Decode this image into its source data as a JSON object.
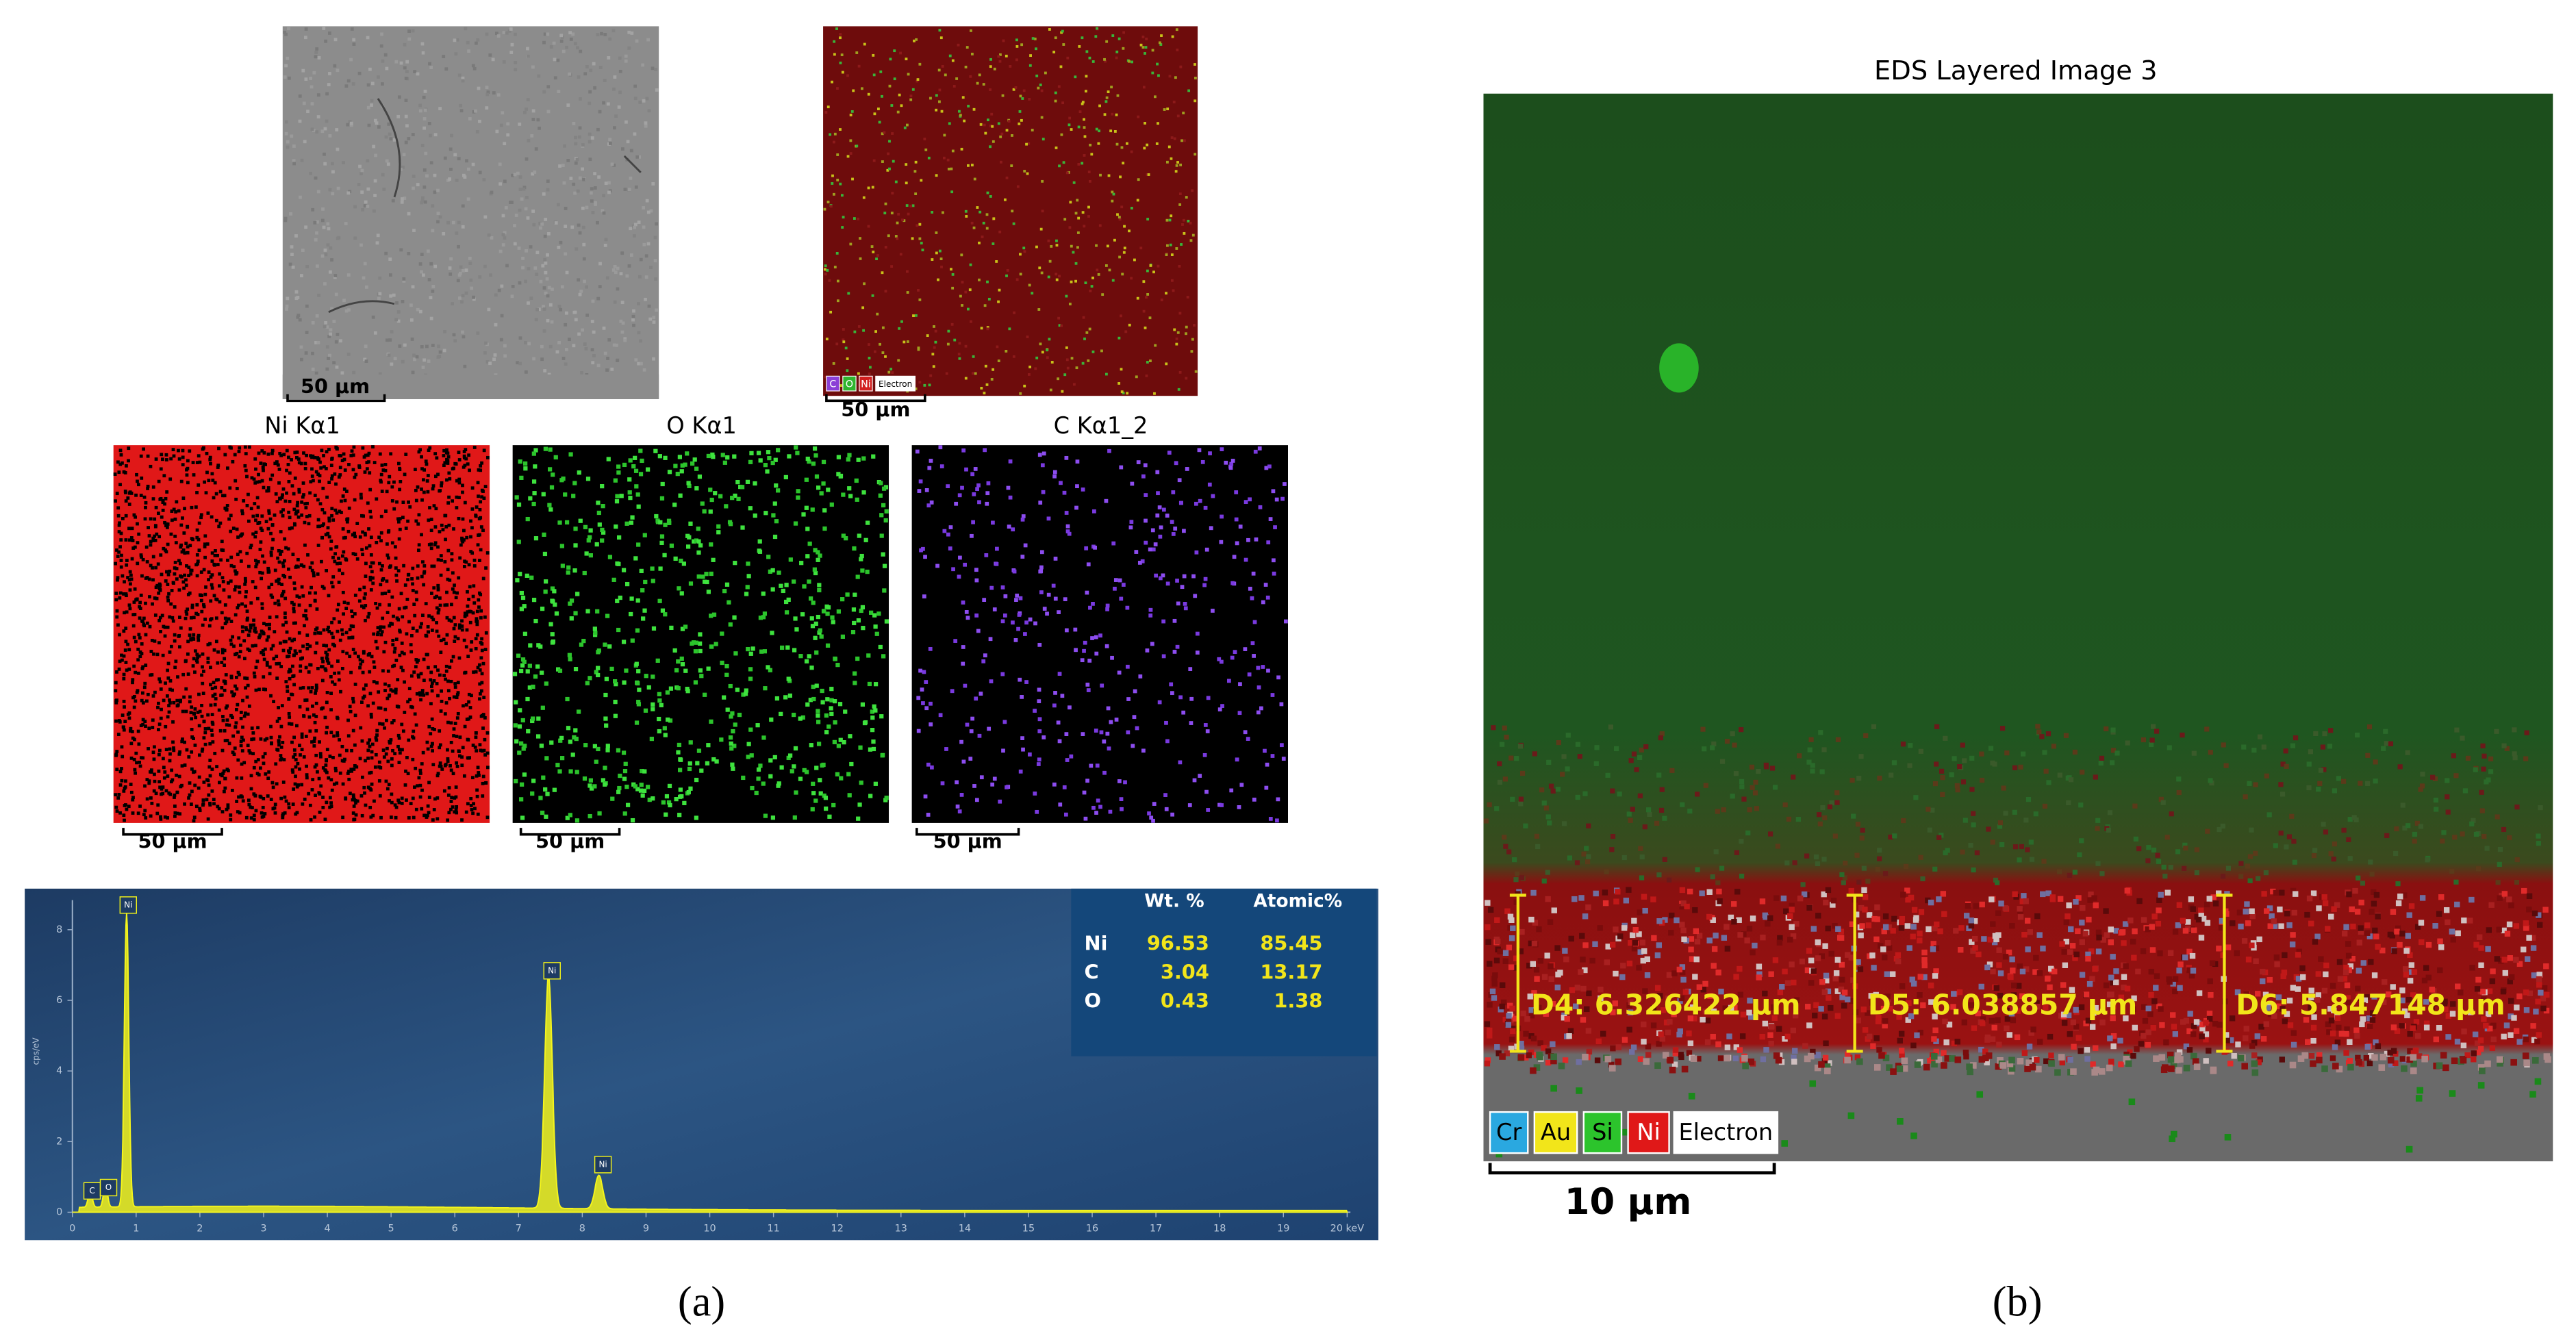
{
  "panel_a": {
    "sem_scale": "50 µm",
    "layered_legend": [
      "C",
      "O",
      "Ni",
      "Electron"
    ],
    "layered_scale": "50 µm",
    "maps": [
      {
        "title": "Ni Kα1",
        "scale": "50 µm"
      },
      {
        "title": "O Kα1",
        "scale": "50 µm"
      },
      {
        "title": "C Kα1_2",
        "scale": "50 µm"
      }
    ],
    "spectrum": {
      "y_label": "cps/eV",
      "y_ticks": [
        "0",
        "2",
        "4",
        "6",
        "8"
      ],
      "x_ticks": [
        "0",
        "1",
        "2",
        "3",
        "4",
        "5",
        "6",
        "7",
        "8",
        "9",
        "10",
        "11",
        "12",
        "13",
        "14",
        "15",
        "16",
        "17",
        "18",
        "19",
        "20 keV"
      ],
      "peak_labels": [
        "Ni",
        "Ni",
        "Ni",
        "C",
        "O"
      ],
      "table": {
        "header": [
          "Wt. %",
          "Atomic%"
        ],
        "rows": [
          [
            "Ni",
            "96.53",
            "85.45"
          ],
          [
            "C",
            "3.04",
            "13.17"
          ],
          [
            "O",
            "0.43",
            "1.38"
          ]
        ]
      }
    },
    "caption": "(a)"
  },
  "panel_b": {
    "title": "EDS Layered Image 3",
    "measurements": [
      "D4:  6.326422 µm",
      "D5:  6.038857 µm",
      "D6:  5.847148 µm"
    ],
    "legend": [
      "Cr",
      "Au",
      "Si",
      "Ni",
      "Electron"
    ],
    "scale": "10 µm",
    "caption": "(b)"
  }
}
